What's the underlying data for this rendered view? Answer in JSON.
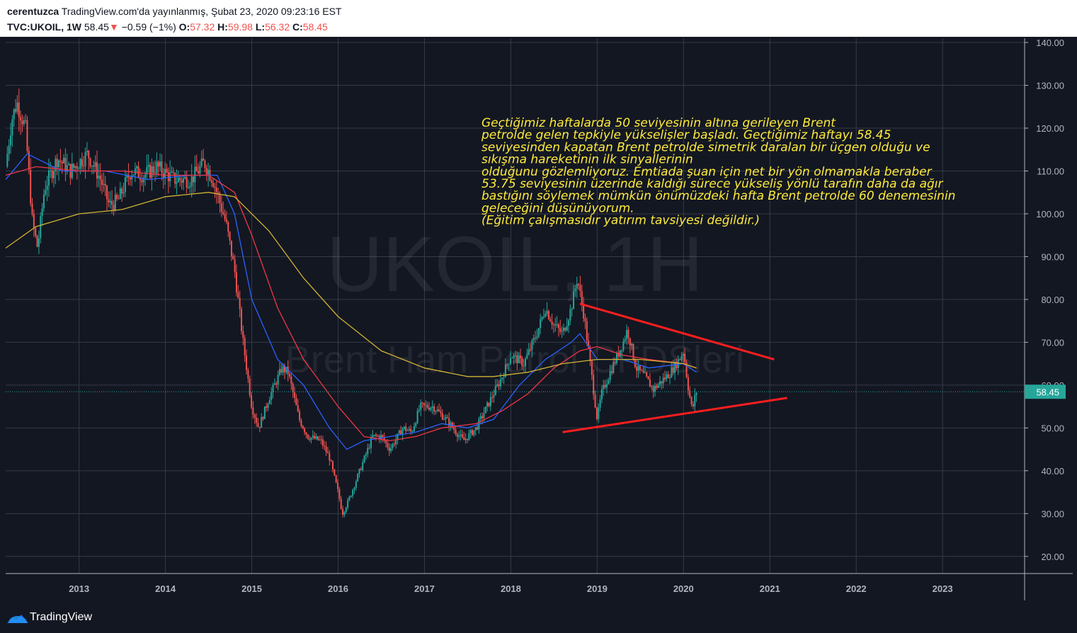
{
  "header": {
    "author": "cerentuzca",
    "published": "TradingView.com'da yayınlanmış, Şubat 23, 2020 09:23:16 EST",
    "symbol": "TVC:UKOIL, 1W",
    "last": "58.45",
    "arrow": "▼",
    "change": "−0.59 (−1%)",
    "o_label": "O:",
    "o_val": "57.32",
    "h_label": "H:",
    "h_val": "59.98",
    "l_label": "L:",
    "l_val": "56.32",
    "c_label": "C:",
    "c_val": "58.45"
  },
  "watermark": {
    "main": "UKOIL, 1H",
    "sub": "Brent Ham Petrol CFDSleri"
  },
  "annotation": [
    "Geçtiğimiz haftalarda 50 seviyesinin altına gerileyen Brent",
    "petrolde gelen tepkiyle yükselişler başladı. Geçtiğimiz haftayı 58.45",
    "seviyesinden kapatan Brent petrolde simetrik daralan bir üçgen olduğu ve",
    "sıkışma hareketinin ilk sinyallerinin",
    "olduğunu gözlemliyoruz. Emtiada şuan için net bir yön olmamakla beraber",
    "53.75 seviyesinin üzerinde kaldığı sürece yükseliş yönlü tarafın daha da ağır",
    "bastığını söylemek mümkün önümüzdeki hafta Brent petrolde 60 denemesinin",
    "geleceğini düşünüyorum.",
    "(Eğitim çalışmasıdır yatırım tavsiyesi değildir.)"
  ],
  "footer": {
    "brand": "TradingView"
  },
  "colors": {
    "background": "#131722",
    "grid": "#363a45",
    "up": "#26a69a",
    "down": "#ef5350",
    "ma_blue": "#2962ff",
    "ma_red": "#f23645",
    "ma_yellow": "#d1b233",
    "trendline": "#ff1e1e",
    "annotation": "#ffeb3b",
    "axis_text": "#b2b5be",
    "price_tag": "#26a69a"
  },
  "chart_data": {
    "type": "candlestick",
    "symbol": "TVC:UKOIL",
    "timeframe": "1W",
    "x_ticks": [
      "2013",
      "2014",
      "2015",
      "2016",
      "2017",
      "2018",
      "2019",
      "2020",
      "2021",
      "2022",
      "2023"
    ],
    "y_ticks": [
      "20.00",
      "30.00",
      "40.00",
      "50.00",
      "60.00",
      "70.00",
      "80.00",
      "90.00",
      "100.00",
      "110.00",
      "120.00",
      "130.00",
      "140.00"
    ],
    "ylim": [
      16,
      141
    ],
    "xlim": [
      2012.15,
      2023.95
    ],
    "last_price": "58.45",
    "price_path": [
      [
        2012.15,
        111
      ],
      [
        2012.22,
        122
      ],
      [
        2012.28,
        126
      ],
      [
        2012.38,
        120
      ],
      [
        2012.46,
        98
      ],
      [
        2012.52,
        92
      ],
      [
        2012.6,
        106
      ],
      [
        2012.75,
        113
      ],
      [
        2012.9,
        110
      ],
      [
        2013.1,
        114
      ],
      [
        2013.25,
        108
      ],
      [
        2013.35,
        102
      ],
      [
        2013.45,
        103
      ],
      [
        2013.6,
        110
      ],
      [
        2013.75,
        109
      ],
      [
        2013.9,
        111
      ],
      [
        2014.1,
        108
      ],
      [
        2014.3,
        108
      ],
      [
        2014.45,
        112
      ],
      [
        2014.55,
        108
      ],
      [
        2014.7,
        98
      ],
      [
        2014.8,
        87
      ],
      [
        2014.9,
        70
      ],
      [
        2015.0,
        55
      ],
      [
        2015.08,
        50
      ],
      [
        2015.2,
        57
      ],
      [
        2015.35,
        64
      ],
      [
        2015.42,
        63
      ],
      [
        2015.55,
        52
      ],
      [
        2015.65,
        48
      ],
      [
        2015.8,
        47
      ],
      [
        2015.9,
        43
      ],
      [
        2016.0,
        35
      ],
      [
        2016.05,
        30
      ],
      [
        2016.12,
        33
      ],
      [
        2016.25,
        40
      ],
      [
        2016.4,
        48
      ],
      [
        2016.5,
        48
      ],
      [
        2016.6,
        45
      ],
      [
        2016.75,
        50
      ],
      [
        2016.85,
        49
      ],
      [
        2016.95,
        55
      ],
      [
        2017.1,
        55
      ],
      [
        2017.25,
        52
      ],
      [
        2017.45,
        47
      ],
      [
        2017.6,
        50
      ],
      [
        2017.75,
        56
      ],
      [
        2017.9,
        62
      ],
      [
        2018.0,
        67
      ],
      [
        2018.15,
        65
      ],
      [
        2018.3,
        72
      ],
      [
        2018.4,
        78
      ],
      [
        2018.5,
        74
      ],
      [
        2018.6,
        72
      ],
      [
        2018.7,
        78
      ],
      [
        2018.77,
        85
      ],
      [
        2018.85,
        76
      ],
      [
        2018.95,
        60
      ],
      [
        2019.0,
        52
      ],
      [
        2019.05,
        58
      ],
      [
        2019.15,
        63
      ],
      [
        2019.3,
        70
      ],
      [
        2019.35,
        73
      ],
      [
        2019.45,
        64
      ],
      [
        2019.55,
        62
      ],
      [
        2019.65,
        59
      ],
      [
        2019.75,
        61
      ],
      [
        2019.85,
        63
      ],
      [
        2019.95,
        66
      ],
      [
        2020.0,
        68
      ],
      [
        2020.05,
        60
      ],
      [
        2020.1,
        54
      ],
      [
        2020.13,
        57
      ],
      [
        2020.15,
        58.45
      ]
    ],
    "moving_averages": [
      {
        "color": "blue",
        "values": [
          [
            2012.15,
            108
          ],
          [
            2012.4,
            114
          ],
          [
            2012.8,
            110
          ],
          [
            2013.3,
            110
          ],
          [
            2013.8,
            108
          ],
          [
            2014.3,
            109
          ],
          [
            2014.6,
            109
          ],
          [
            2014.8,
            100
          ],
          [
            2015.0,
            80
          ],
          [
            2015.3,
            66
          ],
          [
            2015.6,
            60
          ],
          [
            2015.9,
            50
          ],
          [
            2016.1,
            45
          ],
          [
            2016.3,
            47
          ],
          [
            2016.6,
            48
          ],
          [
            2016.9,
            49
          ],
          [
            2017.2,
            51
          ],
          [
            2017.5,
            50
          ],
          [
            2017.8,
            52
          ],
          [
            2018.1,
            60
          ],
          [
            2018.4,
            66
          ],
          [
            2018.7,
            70
          ],
          [
            2018.8,
            72
          ],
          [
            2019.0,
            66
          ],
          [
            2019.3,
            66
          ],
          [
            2019.6,
            64
          ],
          [
            2020.0,
            65
          ],
          [
            2020.15,
            63
          ]
        ]
      },
      {
        "color": "red",
        "values": [
          [
            2012.15,
            109
          ],
          [
            2012.5,
            111
          ],
          [
            2013.0,
            110
          ],
          [
            2013.5,
            110
          ],
          [
            2014.0,
            109
          ],
          [
            2014.5,
            109
          ],
          [
            2014.8,
            105
          ],
          [
            2015.0,
            95
          ],
          [
            2015.3,
            78
          ],
          [
            2015.6,
            66
          ],
          [
            2016.0,
            55
          ],
          [
            2016.3,
            48
          ],
          [
            2016.6,
            47
          ],
          [
            2016.9,
            48
          ],
          [
            2017.2,
            50
          ],
          [
            2017.6,
            51
          ],
          [
            2017.9,
            54
          ],
          [
            2018.2,
            58
          ],
          [
            2018.5,
            64
          ],
          [
            2018.8,
            68
          ],
          [
            2019.0,
            69
          ],
          [
            2019.3,
            67
          ],
          [
            2019.6,
            66
          ],
          [
            2020.0,
            65
          ],
          [
            2020.15,
            64
          ]
        ]
      },
      {
        "color": "yellow",
        "values": [
          [
            2012.15,
            92
          ],
          [
            2012.5,
            97
          ],
          [
            2013.0,
            100
          ],
          [
            2013.5,
            101
          ],
          [
            2014.0,
            104
          ],
          [
            2014.5,
            105
          ],
          [
            2014.8,
            104
          ],
          [
            2015.2,
            96
          ],
          [
            2015.6,
            85
          ],
          [
            2016.0,
            76
          ],
          [
            2016.5,
            68
          ],
          [
            2017.0,
            64
          ],
          [
            2017.5,
            62
          ],
          [
            2017.8,
            62
          ],
          [
            2018.2,
            63
          ],
          [
            2018.6,
            65
          ],
          [
            2019.0,
            66
          ],
          [
            2019.5,
            66
          ],
          [
            2020.0,
            65
          ],
          [
            2020.15,
            64
          ]
        ]
      }
    ],
    "trendlines": [
      {
        "from": [
          2018.8,
          79
        ],
        "to": [
          2021.05,
          66
        ]
      },
      {
        "from": [
          2018.6,
          49
        ],
        "to": [
          2021.2,
          57
        ]
      }
    ]
  }
}
